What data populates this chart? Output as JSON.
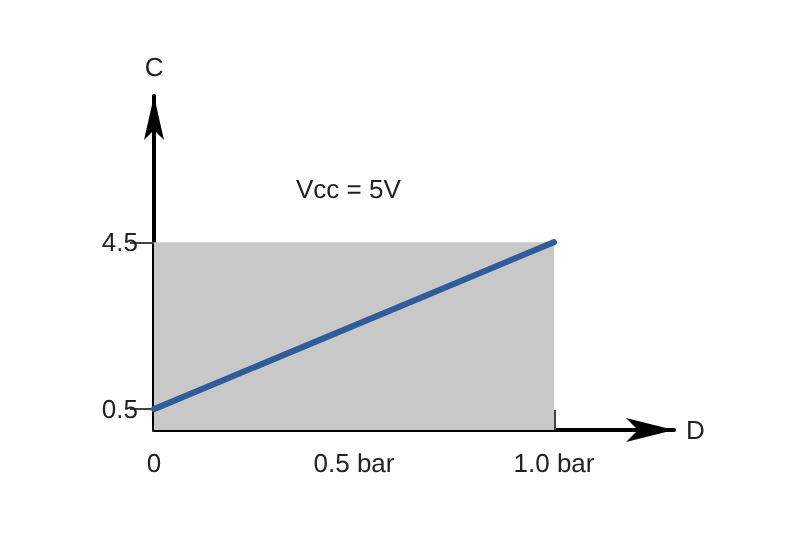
{
  "chart_data": {
    "type": "line",
    "xlabel": "D",
    "ylabel": "C",
    "annotations": [
      "Vcc = 5V"
    ],
    "xlim": [
      0,
      1.3
    ],
    "ylim": [
      0,
      8
    ],
    "xticks": [
      0,
      {
        "value": 0.5,
        "label": "0.5 bar"
      },
      {
        "value": 1.0,
        "label": "1.0 bar"
      }
    ],
    "yticks": [
      0.5,
      4.5
    ],
    "grid": false,
    "legend": false,
    "marker": "none",
    "line_style": "solid",
    "x": [
      0,
      1.0
    ],
    "series": [
      {
        "type": "area",
        "color": "#c8c8c8",
        "values": [
          4.5,
          4.5
        ]
      },
      {
        "type": "line",
        "color": "#2e5d9a",
        "values": [
          0.5,
          4.5
        ]
      }
    ]
  }
}
